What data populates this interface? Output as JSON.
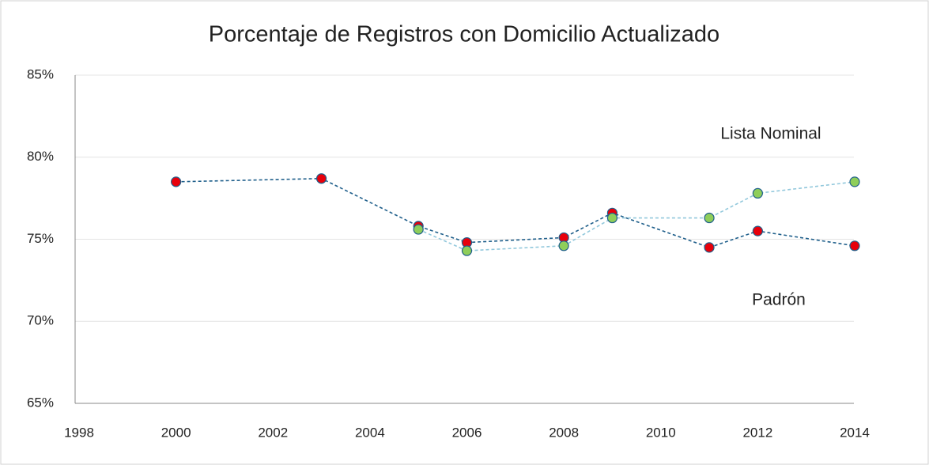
{
  "chart_data": {
    "type": "line",
    "title": "Porcentaje de Registros con Domicilio  Actualizado",
    "series": [
      {
        "name": "Padrón",
        "color": "#1f5f8b",
        "marker_color": "#e8000b",
        "x": [
          2000,
          2003,
          2005,
          2006,
          2008,
          2009,
          2011,
          2012,
          2014
        ],
        "values": [
          78.5,
          78.7,
          75.8,
          74.8,
          75.1,
          76.6,
          74.5,
          75.5,
          74.6
        ]
      },
      {
        "name": "Lista Nominal",
        "color": "#92c8dc",
        "marker_color": "#8fce5a",
        "x": [
          2005,
          2006,
          2008,
          2009,
          2011,
          2012,
          2014
        ],
        "values": [
          75.6,
          74.3,
          74.6,
          76.3,
          76.3,
          77.8,
          78.5
        ]
      }
    ],
    "xlim": [
      1998,
      2014
    ],
    "xticks": [
      1998,
      2000,
      2002,
      2004,
      2006,
      2008,
      2010,
      2012,
      2014
    ],
    "ylim": [
      65,
      85
    ],
    "yticks": [
      {
        "value": 65,
        "label": "65%"
      },
      {
        "value": 70,
        "label": "70%"
      },
      {
        "value": 75,
        "label": "75%"
      },
      {
        "value": 80,
        "label": "80%"
      },
      {
        "value": 85,
        "label": "85%"
      }
    ],
    "grid": true
  }
}
